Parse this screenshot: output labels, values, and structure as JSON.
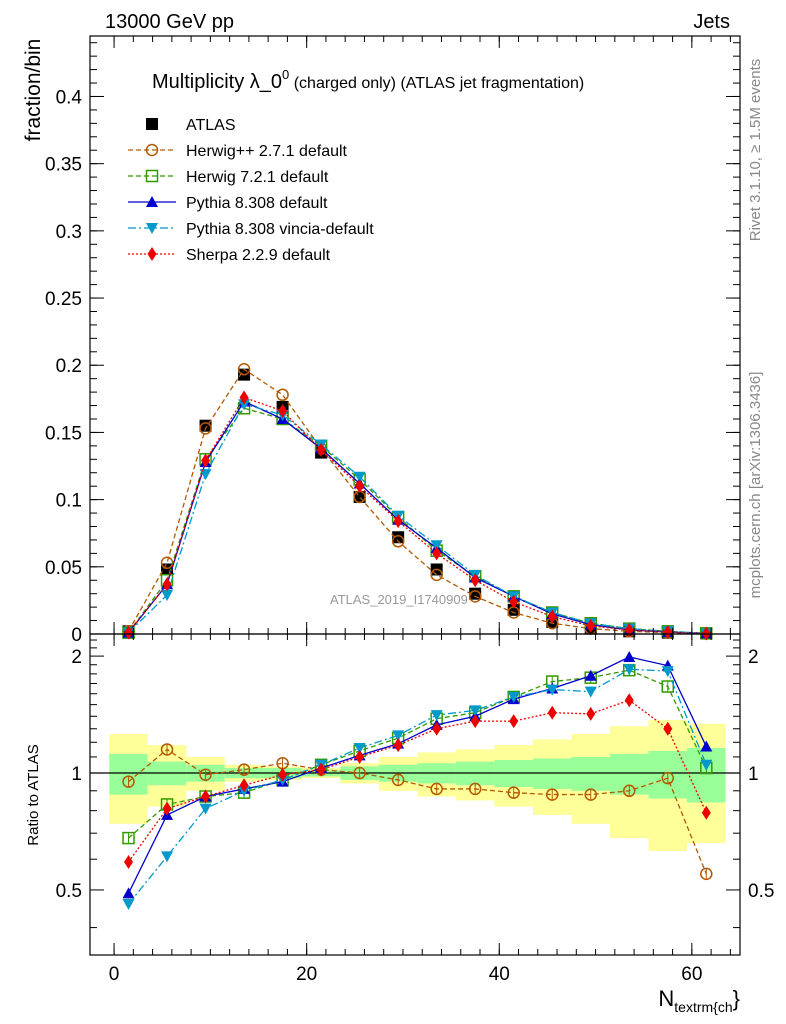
{
  "header": {
    "left": "13000 GeV pp",
    "right": "Jets"
  },
  "side_labels": {
    "rivet": "Rivet 3.1.10, ≥ 1.5M events",
    "mcplots": "mcplots.cern.ch [arXiv:1306.3436]"
  },
  "plot_title": {
    "main": "Multiplicity λ_0",
    "sup": "0",
    "sub": " (charged only) (ATLAS jet fragmentation)"
  },
  "watermark": "ATLAS_2019_I1740909",
  "chart_data": [
    {
      "type": "scatter",
      "panel": "main",
      "ylabel": "fraction/bin",
      "xlim": [
        -2.5,
        65
      ],
      "ylim": [
        0,
        0.445
      ],
      "yticks": [
        "0",
        "0.05",
        "0.1",
        "0.15",
        "0.2",
        "0.25",
        "0.3",
        "0.35",
        "0.4"
      ],
      "x": [
        1.5,
        5.5,
        9.5,
        13.5,
        17.5,
        21.5,
        25.5,
        29.5,
        33.5,
        37.5,
        41.5,
        45.5,
        49.5,
        53.5,
        57.5,
        61.5
      ],
      "series": [
        {
          "name": "ATLAS",
          "color": "#000000",
          "values": [
            0.002,
            0.048,
            0.155,
            0.193,
            0.169,
            0.135,
            0.102,
            0.072,
            0.048,
            0.03,
            0.018,
            0.009,
            0.004,
            0.002,
            0.001,
            0.0005
          ]
        },
        {
          "name": "Herwig++ 2.7.1 default",
          "color": "#b35900",
          "values": [
            0.002,
            0.053,
            0.153,
            0.197,
            0.178,
            0.138,
            0.102,
            0.069,
            0.044,
            0.028,
            0.016,
            0.008,
            0.004,
            0.002,
            0.001,
            0.0003
          ]
        },
        {
          "name": "Herwig 7.2.1 default",
          "color": "#339900",
          "values": [
            0.001,
            0.04,
            0.13,
            0.168,
            0.16,
            0.14,
            0.115,
            0.087,
            0.062,
            0.043,
            0.028,
            0.016,
            0.008,
            0.004,
            0.002,
            0.0005
          ]
        },
        {
          "name": "Pythia 8.308 default",
          "color": "#0000cc",
          "values": [
            0.001,
            0.037,
            0.128,
            0.173,
            0.16,
            0.138,
            0.112,
            0.085,
            0.064,
            0.042,
            0.028,
            0.015,
            0.007,
            0.003,
            0.0015,
            0.0005
          ]
        },
        {
          "name": "Pythia 8.308 vincia-default",
          "color": "#0099cc",
          "values": [
            0.001,
            0.029,
            0.119,
            0.171,
            0.163,
            0.141,
            0.117,
            0.088,
            0.066,
            0.044,
            0.028,
            0.016,
            0.008,
            0.004,
            0.002,
            0.0005
          ]
        },
        {
          "name": "Sherpa 2.2.9 default",
          "color": "#ee0000",
          "values": [
            0.001,
            0.037,
            0.129,
            0.176,
            0.166,
            0.137,
            0.11,
            0.084,
            0.06,
            0.04,
            0.024,
            0.013,
            0.006,
            0.003,
            0.0015,
            0.0004
          ]
        }
      ]
    },
    {
      "type": "scatter",
      "panel": "ratio",
      "ylabel": "Ratio to ATLAS",
      "xlabel": "N",
      "xlabel_sub": "textrm{ch",
      "xlabel_tail": "}",
      "xlim": [
        -2.5,
        65
      ],
      "ylim": [
        0.34,
        2.28
      ],
      "xticks": [
        "0",
        "20",
        "40",
        "60"
      ],
      "yticks": [
        "0.5",
        "1",
        "2"
      ],
      "x": [
        1.5,
        5.5,
        9.5,
        13.5,
        17.5,
        21.5,
        25.5,
        29.5,
        33.5,
        37.5,
        41.5,
        45.5,
        49.5,
        53.5,
        57.5,
        61.5
      ],
      "band_stat": [
        0.12,
        0.07,
        0.05,
        0.03,
        0.03,
        0.02,
        0.04,
        0.05,
        0.06,
        0.07,
        0.08,
        0.09,
        0.1,
        0.12,
        0.14,
        0.16
      ],
      "band_total": [
        0.26,
        0.18,
        0.1,
        0.05,
        0.04,
        0.03,
        0.06,
        0.1,
        0.13,
        0.15,
        0.18,
        0.22,
        0.26,
        0.32,
        0.37,
        0.34
      ],
      "series": [
        {
          "name": "Herwig++ 2.7.1 default",
          "values": [
            0.95,
            1.15,
            0.99,
            1.02,
            1.06,
            1.02,
            1.0,
            0.96,
            0.91,
            0.91,
            0.89,
            0.88,
            0.88,
            0.9,
            0.97,
            0.55
          ]
        },
        {
          "name": "Herwig 7.2.1 default",
          "values": [
            0.68,
            0.83,
            0.87,
            0.89,
            0.96,
            1.05,
            1.14,
            1.23,
            1.38,
            1.43,
            1.57,
            1.72,
            1.76,
            1.84,
            1.67,
            1.03
          ]
        },
        {
          "name": "Pythia 8.308 default",
          "values": [
            0.49,
            0.78,
            0.87,
            0.91,
            0.95,
            1.03,
            1.11,
            1.19,
            1.33,
            1.4,
            1.55,
            1.65,
            1.78,
            1.99,
            1.89,
            1.17
          ]
        },
        {
          "name": "Pythia 8.308 vincia-default",
          "values": [
            0.46,
            0.61,
            0.81,
            0.9,
            0.96,
            1.05,
            1.16,
            1.25,
            1.41,
            1.45,
            1.57,
            1.64,
            1.62,
            1.85,
            1.83,
            1.05
          ]
        },
        {
          "name": "Sherpa 2.2.9 default",
          "values": [
            0.59,
            0.81,
            0.87,
            0.93,
            0.99,
            1.02,
            1.1,
            1.18,
            1.3,
            1.36,
            1.36,
            1.43,
            1.42,
            1.54,
            1.3,
            0.79
          ]
        }
      ]
    }
  ]
}
